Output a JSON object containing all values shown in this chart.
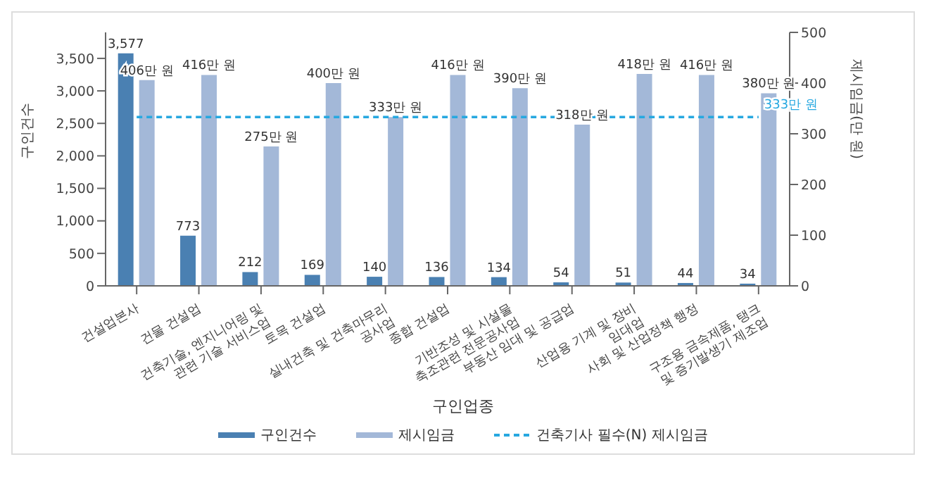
{
  "chart_data": {
    "type": "bar",
    "xlabel": "구인업종",
    "ylabel": "구인건수",
    "y2label": "제시임금(만 원)",
    "categories": [
      "건설업본사",
      "건물 건설업",
      "건축기술, 엔지니어링 및 관련 기술 서비스업",
      "토목 건설업",
      "실내건축 및 건축마무리 공사업",
      "종합 건설업",
      "기반조성 및 시설물 축조관련 전문공사업",
      "부동산 임대 및 공급업",
      "산업용 기계 및 장비 임대업",
      "사회 및 산업정책 행정",
      "구조용 금속제품, 탱크 및 증기발생기 제조업"
    ],
    "series": [
      {
        "name": "구인건수",
        "color": "#4a80b2",
        "values": [
          3577,
          773,
          212,
          169,
          140,
          136,
          134,
          54,
          51,
          44,
          34
        ],
        "value_labels": [
          "3,577",
          "773",
          "212",
          "169",
          "140",
          "136",
          "134",
          "54",
          "51",
          "44",
          "34"
        ]
      },
      {
        "name": "제시임금",
        "axis": "y2",
        "color": "#a3b8d8",
        "values": [
          406,
          416,
          275,
          400,
          333,
          416,
          390,
          318,
          418,
          416,
          380
        ],
        "value_labels": [
          "406만 원",
          "416만 원",
          "275만 원",
          "400만 원",
          "333만 원",
          "416만 원",
          "390만 원",
          "318만 원",
          "418만 원",
          "416만 원",
          "380만 원"
        ]
      },
      {
        "name": "건축기사 필수(N) 제시임금",
        "type": "line",
        "axis": "y2",
        "color": "#27a8e0",
        "line_style": "dashed",
        "marker": "none",
        "values": [
          333,
          333,
          333,
          333,
          333,
          333,
          333,
          333,
          333,
          333,
          333
        ],
        "value_labels": [
          null,
          null,
          null,
          null,
          null,
          null,
          null,
          null,
          null,
          null,
          "333만 원"
        ]
      }
    ],
    "ylim": [
      0,
      3900
    ],
    "yticks": [
      {
        "value": 0,
        "label": "0"
      },
      {
        "value": 500,
        "label": "500"
      },
      {
        "value": 1000,
        "label": "1,000"
      },
      {
        "value": 1500,
        "label": "1,500"
      },
      {
        "value": 2000,
        "label": "2,000"
      },
      {
        "value": 2500,
        "label": "2,500"
      },
      {
        "value": 3000,
        "label": "3,000"
      },
      {
        "value": 3500,
        "label": "3,500"
      }
    ],
    "y2lim": [
      0,
      500
    ],
    "y2ticks": [
      0,
      100,
      200,
      300,
      400,
      500
    ],
    "grid": false,
    "legend": "bottom"
  }
}
